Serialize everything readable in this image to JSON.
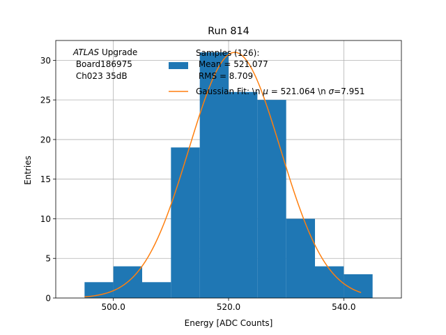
{
  "chart_data": {
    "type": "bar",
    "title": "Run 814",
    "xlabel": "Energy [ADC Counts]",
    "ylabel": "Entries",
    "xlim": [
      490,
      550
    ],
    "ylim": [
      0,
      32.5
    ],
    "grid": true,
    "legend_position": "top-right",
    "bins": [
      {
        "x0": 495,
        "x1": 500,
        "count": 2
      },
      {
        "x0": 500,
        "x1": 505,
        "count": 4
      },
      {
        "x0": 505,
        "x1": 510,
        "count": 2
      },
      {
        "x0": 510,
        "x1": 515,
        "count": 19
      },
      {
        "x0": 515,
        "x1": 520,
        "count": 31
      },
      {
        "x0": 520,
        "x1": 525,
        "count": 26
      },
      {
        "x0": 525,
        "x1": 530,
        "count": 25
      },
      {
        "x0": 530,
        "x1": 535,
        "count": 10
      },
      {
        "x0": 535,
        "x1": 540,
        "count": 4
      },
      {
        "x0": 540,
        "x1": 545,
        "count": 3
      }
    ],
    "gaussian_fit": {
      "mu": 521.064,
      "sigma": 7.951,
      "amplitude": 31,
      "x_start": 495,
      "x_end": 543
    },
    "x_ticks": [
      {
        "value": 500,
        "label": "500.0"
      },
      {
        "value": 520,
        "label": "520.0"
      },
      {
        "value": 540,
        "label": "540.0"
      }
    ],
    "y_ticks": [
      {
        "value": 0,
        "label": "0"
      },
      {
        "value": 5,
        "label": "5"
      },
      {
        "value": 10,
        "label": "10"
      },
      {
        "value": 15,
        "label": "15"
      },
      {
        "value": 20,
        "label": "20"
      },
      {
        "value": 25,
        "label": "25"
      },
      {
        "value": 30,
        "label": "30"
      }
    ],
    "legend": {
      "hist_lines": [
        "Samples (126):",
        " Mean = 521.077",
        " RMS = 8.709"
      ],
      "fit_prefix": "Gaussian Fit: \\n ",
      "fit_mu_symbol": "μ",
      "fit_mid": " = 521.064 \\n ",
      "fit_sigma_symbol": "σ",
      "fit_suffix": "=7.951"
    },
    "annotation": {
      "atlas": "ATLAS",
      "upgrade": " Upgrade",
      "board": " Board186975",
      "channel": " Ch023 35dB"
    },
    "colors": {
      "bar": "#1f77b4",
      "fit": "#ff7f0e",
      "grid": "#b0b0b0"
    }
  }
}
